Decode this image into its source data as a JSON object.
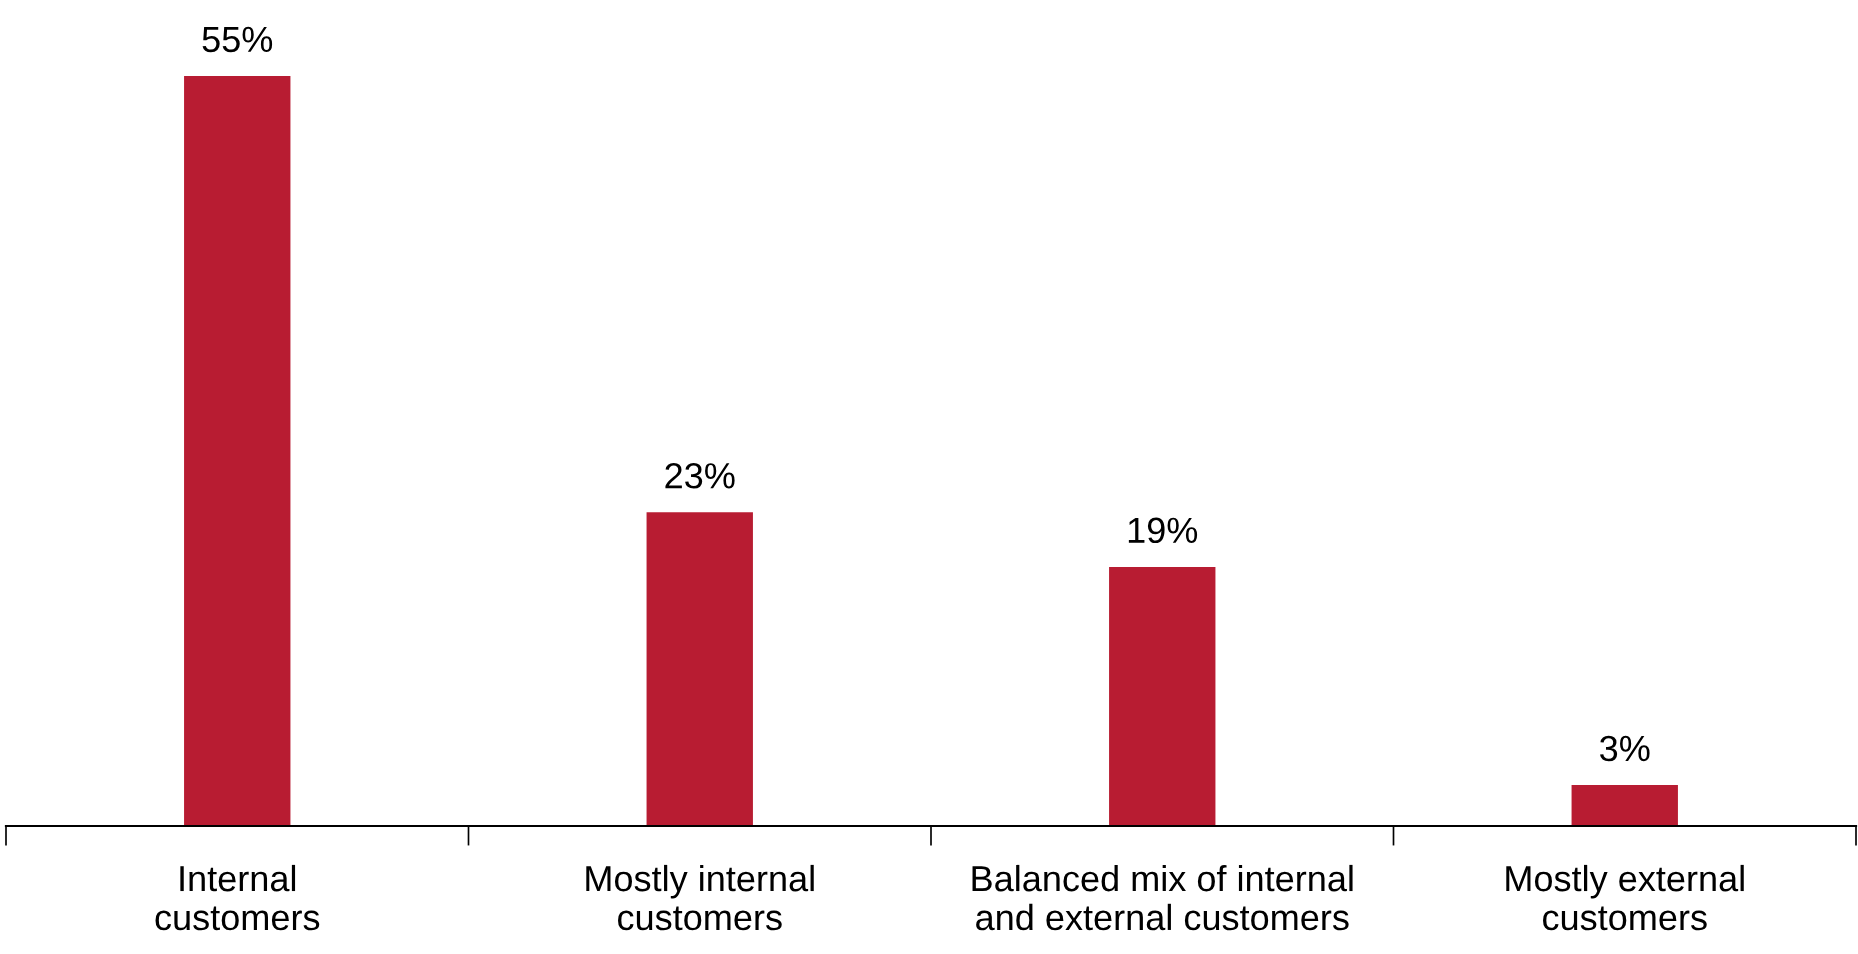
{
  "chart_data": {
    "type": "bar",
    "categories": [
      "Internal\ncustomers",
      "Mostly internal\ncustomers",
      "Balanced mix of internal\nand external customers",
      "Mostly external\ncustomers"
    ],
    "values": [
      55,
      23,
      19,
      3
    ],
    "value_labels": [
      "55%",
      "23%",
      "19%",
      "3%"
    ],
    "color": "#b81c32"
  }
}
